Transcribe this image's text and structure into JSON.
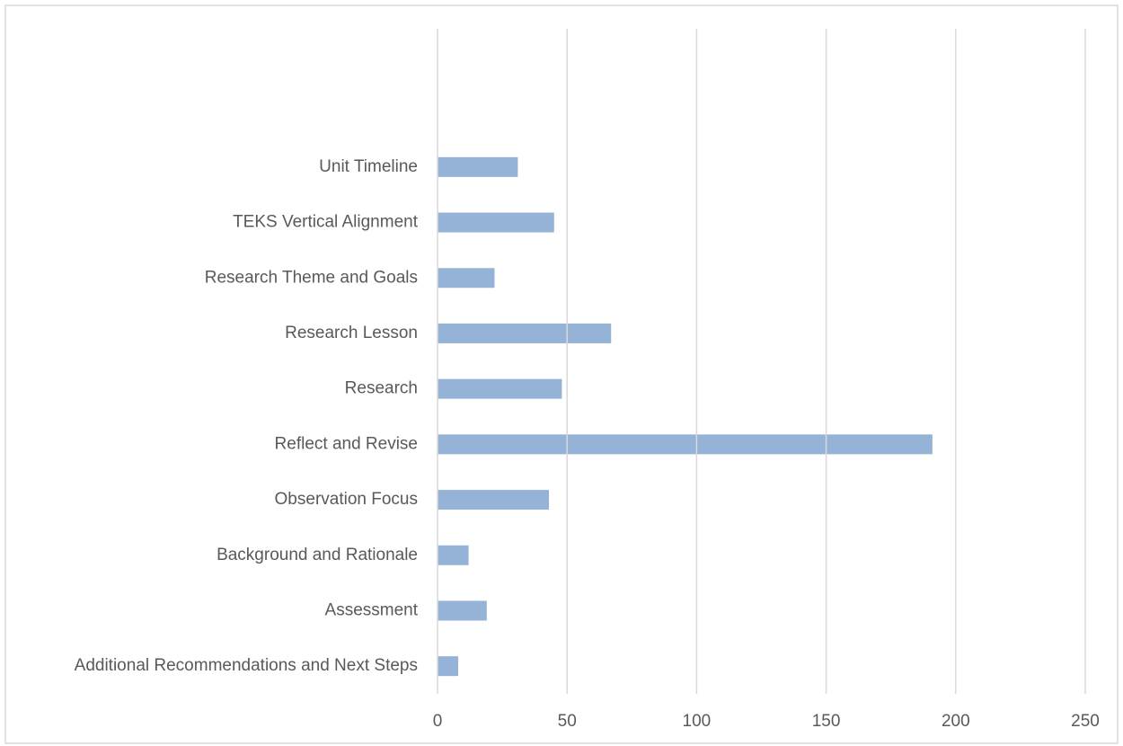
{
  "chart_data": {
    "type": "bar",
    "orientation": "horizontal",
    "categories": [
      "Additional Recommendations and Next Steps",
      "Assessment",
      "Background and Rationale",
      "Observation Focus",
      "Reflect and Revise",
      "Research",
      "Research Lesson",
      "Research Theme and Goals",
      "TEKS Vertical Alignment",
      "Unit Timeline"
    ],
    "values": [
      8,
      19,
      12,
      43,
      191,
      48,
      67,
      22,
      45,
      31
    ],
    "color": "#95b3d7",
    "xlim": [
      0,
      250
    ],
    "xticks": [
      0,
      50,
      100,
      150,
      200,
      250
    ],
    "grid": true
  }
}
